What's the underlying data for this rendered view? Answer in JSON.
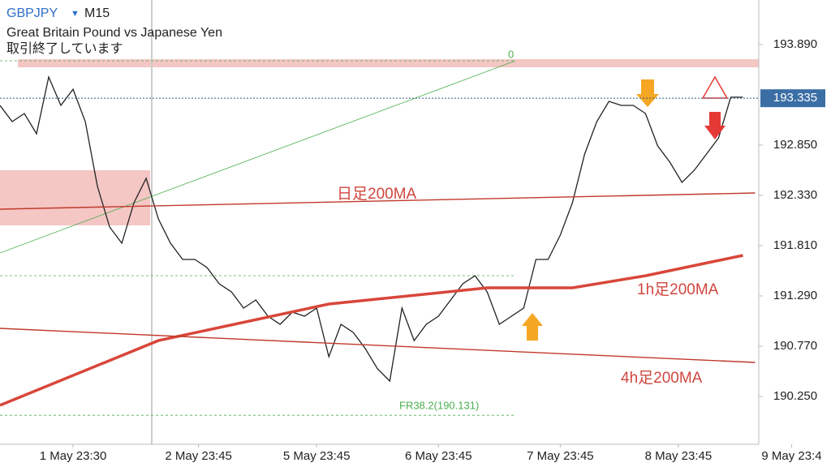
{
  "chart_data": {
    "type": "line",
    "symbol": "GBPJPY",
    "timeframe": "M15",
    "title": "Great Britain Pound vs Japanese Yen",
    "subtitle": "取引終了しています",
    "ylim": [
      189.755,
      194.351
    ],
    "yticks": [
      {
        "value": 193.89,
        "label": "193.890"
      },
      {
        "value": 192.85,
        "label": "192.850"
      },
      {
        "value": 192.33,
        "label": "192.330"
      },
      {
        "value": 191.81,
        "label": "191.810"
      },
      {
        "value": 191.29,
        "label": "191.290"
      },
      {
        "value": 190.77,
        "label": "190.770"
      },
      {
        "value": 190.25,
        "label": "190.250"
      }
    ],
    "xlim": [
      0,
      62.3
    ],
    "xticks": [
      {
        "value": 6,
        "label": "1 May 23:30"
      },
      {
        "value": 16.3,
        "label": "2 May 23:45"
      },
      {
        "value": 26,
        "label": "5 May 23:45"
      },
      {
        "value": 36,
        "label": "6 May 23:45"
      },
      {
        "value": 46,
        "label": "7 May 23:45"
      },
      {
        "value": 55.7,
        "label": "8 May 23:45"
      },
      {
        "value": 65,
        "label": "9 May 23:4"
      }
    ],
    "current_price": {
      "value": 193.335,
      "label": "193.335"
    },
    "series": [
      {
        "name": "GBPJPY",
        "color": "#222222",
        "x": [
          0,
          1,
          2,
          3,
          4,
          5,
          6,
          7,
          8,
          9,
          10,
          11,
          12,
          13,
          14,
          15,
          16,
          17,
          18,
          19,
          20,
          21,
          22,
          23,
          24,
          25,
          26,
          27,
          28,
          29,
          30,
          31,
          32,
          33,
          34,
          35,
          36,
          37,
          38,
          39,
          40,
          41,
          42,
          43,
          44,
          45,
          46,
          47,
          48,
          49,
          50,
          51,
          52,
          53,
          54,
          55,
          56,
          57,
          58,
          59,
          60,
          61
        ],
        "values": [
          193.261,
          193.093,
          193.177,
          192.967,
          193.554,
          193.261,
          193.428,
          193.093,
          192.422,
          192.003,
          191.835,
          192.254,
          192.506,
          192.087,
          191.835,
          191.667,
          191.667,
          191.583,
          191.416,
          191.332,
          191.164,
          191.248,
          191.08,
          190.996,
          191.122,
          191.08,
          191.164,
          190.661,
          190.996,
          190.912,
          190.745,
          190.535,
          190.409,
          191.164,
          190.828,
          190.996,
          191.08,
          191.248,
          191.416,
          191.499,
          191.332,
          190.996,
          191.08,
          191.164,
          191.667,
          191.667,
          191.919,
          192.254,
          192.757,
          193.093,
          193.303,
          193.261,
          193.261,
          193.177,
          192.842,
          192.674,
          192.464,
          192.59,
          192.757,
          192.925,
          193.345,
          193.345
        ]
      },
      {
        "name": "日足200MA",
        "color": "#c0392b",
        "x": [
          0,
          62
        ],
        "values": [
          192.187,
          192.355
        ]
      },
      {
        "name": "1h足200MA",
        "color": "#d9463a",
        "x": [
          0,
          13,
          27,
          40,
          47,
          53,
          61
        ],
        "values": [
          190.158,
          190.828,
          191.206,
          191.374,
          191.374,
          191.499,
          191.709
        ]
      },
      {
        "name": "4h足200MA",
        "color": "#c0392b",
        "x": [
          0,
          62
        ],
        "values": [
          190.954,
          190.602
        ]
      }
    ],
    "annotations": [
      {
        "text": "FR38.2(190.131)",
        "value": 190.131
      },
      {
        "text": "0"
      }
    ]
  }
}
